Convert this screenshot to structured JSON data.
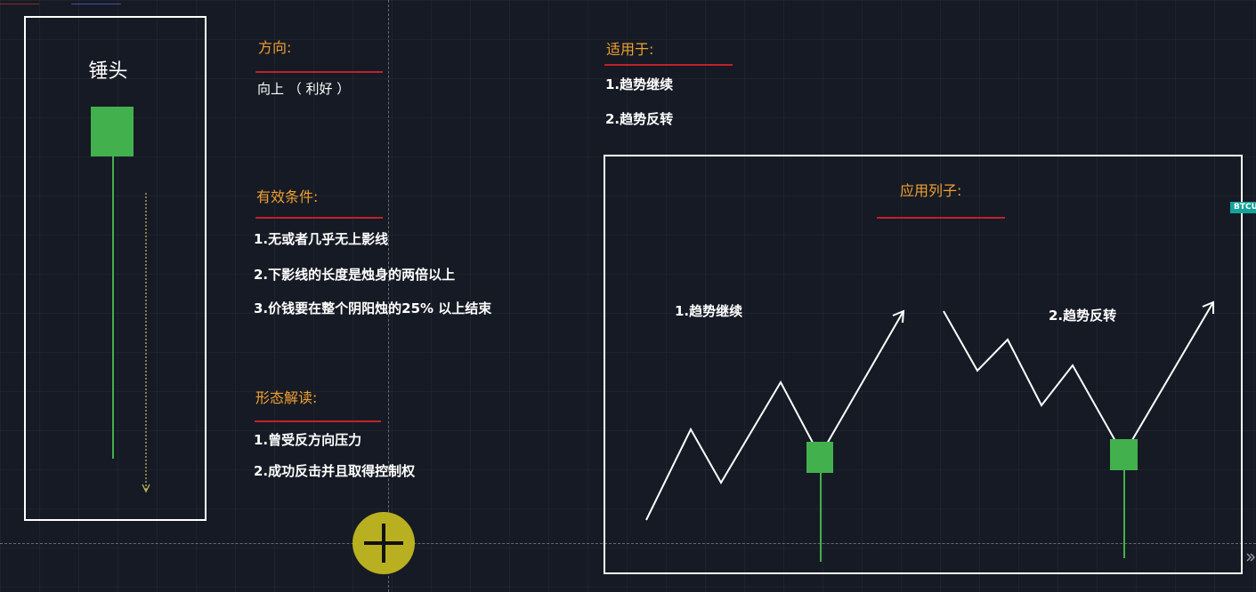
{
  "card": {
    "title": "锤头",
    "body_color": "#43b04e"
  },
  "direction": {
    "heading": "方向:",
    "value": "向上 （ 利好 ）"
  },
  "conditions": {
    "heading": "有效条件:",
    "items": [
      "1.无或者几乎无上影线",
      "2.下影线的长度是烛身的两倍以上",
      "3.价钱要在整个阴阳烛的25% 以上结束"
    ]
  },
  "interpretation": {
    "heading": "形态解读:",
    "items": [
      "1.曾受反方向压力",
      "2.成功反击并且取得控制权"
    ]
  },
  "applicable": {
    "heading": "适用于:",
    "items": [
      "1.趋势继续",
      "2.趋势反转"
    ]
  },
  "example": {
    "heading": "应用列子:",
    "continuation_label": "1.趋势继续",
    "reversal_label": "2.趋势反转"
  },
  "symbol_badge": "BTCU",
  "colors": {
    "heading": "#f0a030",
    "underline": "#c0222a",
    "candle": "#43b04e",
    "background": "#161a24"
  },
  "icons": {
    "cursor": "crosshair-plus-icon",
    "scroll": "double-chevron-right-icon"
  }
}
